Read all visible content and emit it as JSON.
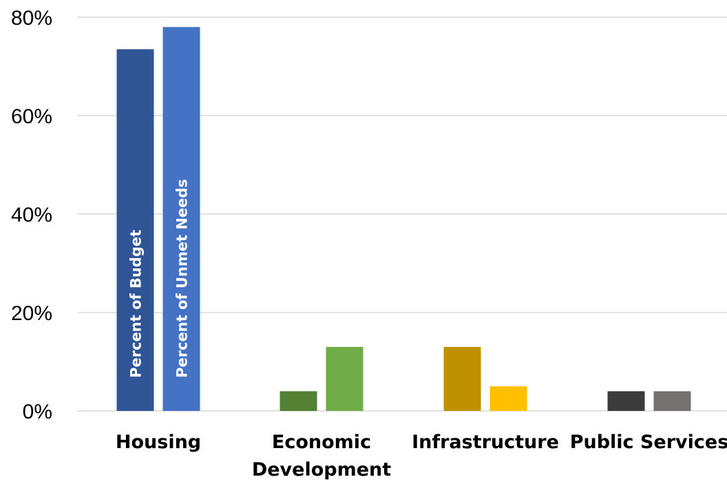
{
  "chart_data": {
    "type": "bar",
    "title": "",
    "xlabel": "",
    "ylabel": "",
    "categories": [
      "Housing",
      "Economic Development",
      "Infrastructure",
      "Public Services"
    ],
    "category_lines": [
      [
        "Housing"
      ],
      [
        "Economic",
        "Development"
      ],
      [
        "Infrastructure"
      ],
      [
        "Public Services"
      ]
    ],
    "series": [
      {
        "name": "Percent of Budget",
        "values": [
          73.5,
          4,
          13,
          4
        ]
      },
      {
        "name": "Percent of Unmet Needs",
        "values": [
          78,
          13,
          5,
          4
        ]
      }
    ],
    "bar_colors": [
      [
        "#2F5597",
        "#4472C4"
      ],
      [
        "#548235",
        "#70AD47"
      ],
      [
        "#BF9000",
        "#FFC000"
      ],
      [
        "#3B3B3B",
        "#767171"
      ]
    ],
    "ylim": [
      0,
      80
    ],
    "yticks": [
      0,
      20,
      40,
      60,
      80
    ],
    "ytick_labels": [
      "0%",
      "20%",
      "40%",
      "60%",
      "80%"
    ],
    "grid": true,
    "legend": "none (series names printed inside Housing bars)",
    "gridline_color": "#D9D9D9"
  }
}
